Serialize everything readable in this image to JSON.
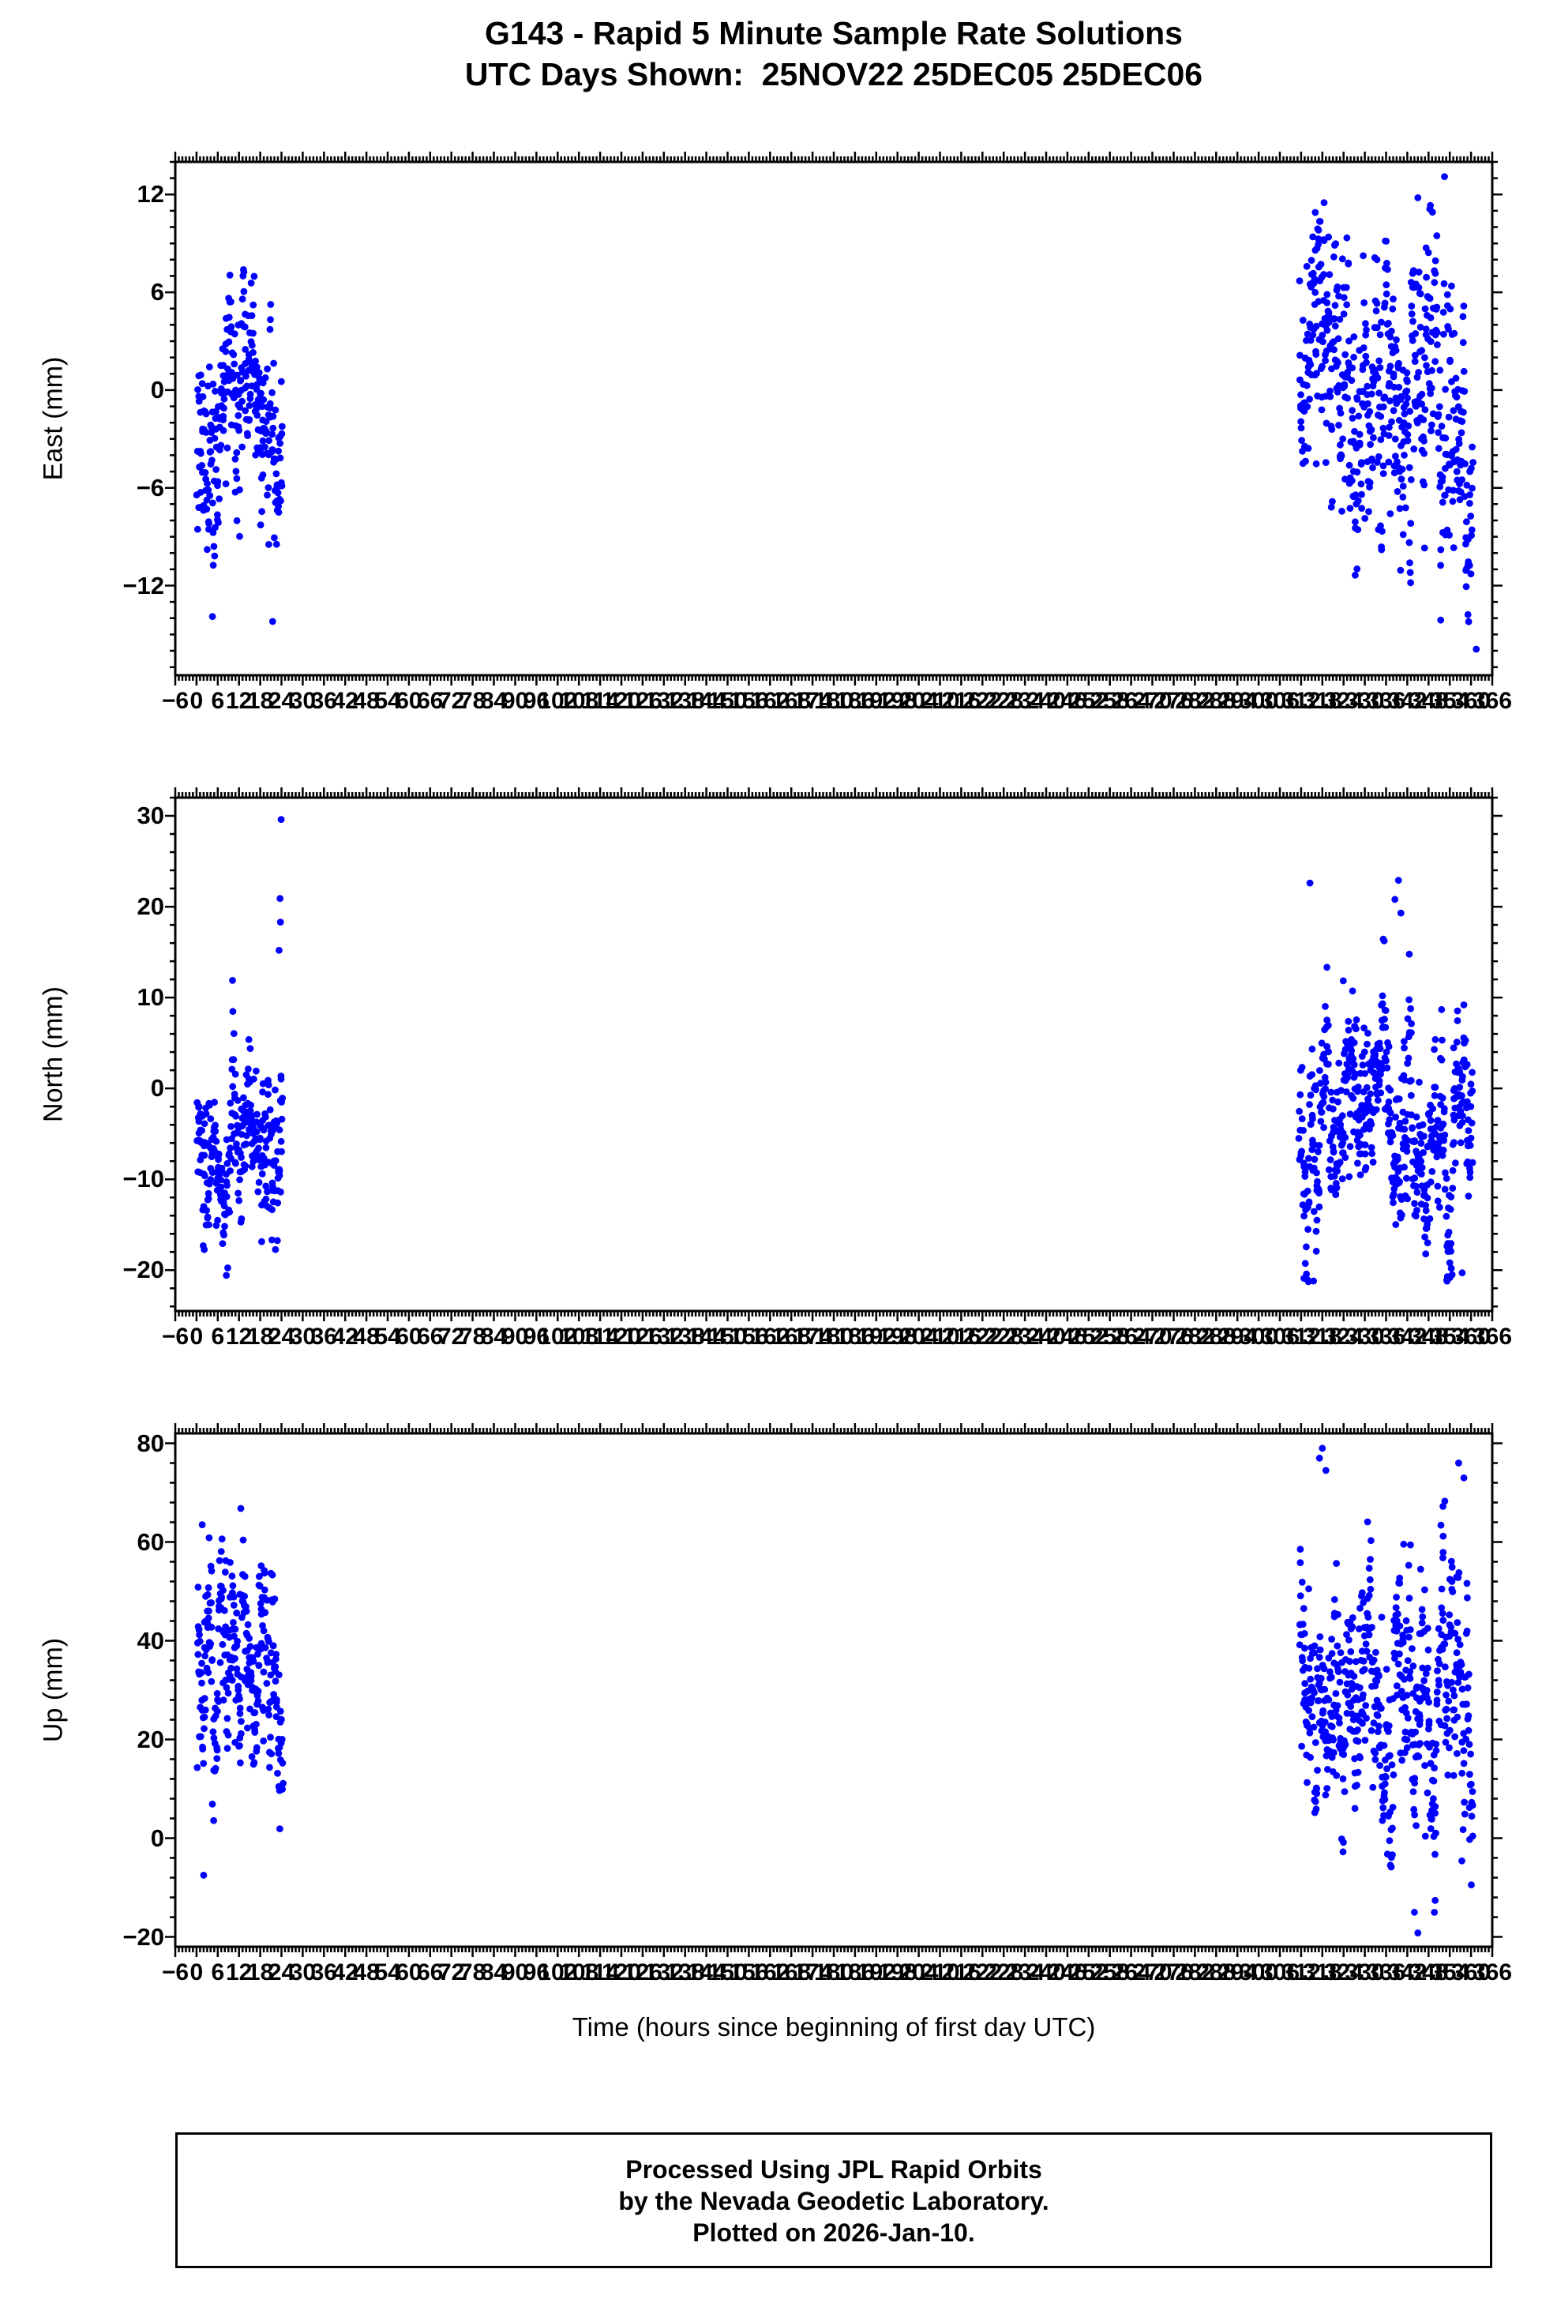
{
  "title": {
    "line1": "G143 - Rapid 5 Minute Sample Rate Solutions",
    "line2": "UTC Days Shown:  25NOV22 25DEC05 25DEC06"
  },
  "axis": {
    "xlabel": "Time (hours since beginning of first day UTC)"
  },
  "footer": {
    "line1": "Processed Using JPL Rapid Orbits",
    "line2": "by the Nevada Geodetic Laboratory.",
    "line3": "Plotted on 2026-Jan-10."
  },
  "style": {
    "point_color": "#0000ff",
    "axis_color": "#000000"
  },
  "chart_data": [
    {
      "type": "scatter",
      "name": "east",
      "ylabel": "East (mm)",
      "xlim": [
        -6,
        366
      ],
      "xtick_major": 6,
      "xtick_minor": 1,
      "ylim": [
        -17.5,
        14
      ],
      "yticks": [
        -12,
        -6,
        0,
        6,
        12
      ],
      "ytick_minor": 1,
      "grid": false,
      "legend": false,
      "series": [
        {
          "name": "day-25NOV22",
          "seed": 101,
          "x_range": [
            0.2,
            24.3
          ],
          "count": 288,
          "mean": -1.2,
          "std": 4.0,
          "ymin": -14.6,
          "ymax": 7.4
        },
        {
          "name": "days-25DEC05-25DEC06",
          "seed": 102,
          "x_range": [
            311.5,
            360.5
          ],
          "count": 576,
          "mean": -0.6,
          "std": 4.6,
          "ymin": -14.8,
          "ymax": 12.6
        }
      ],
      "extra_points": [
        [
          352.5,
          13.1
        ],
        [
          361.5,
          -15.9
        ],
        [
          345.0,
          11.8
        ],
        [
          316.0,
          10.9
        ],
        [
          318.5,
          11.5
        ],
        [
          4.5,
          -13.9
        ],
        [
          21.5,
          -14.2
        ]
      ]
    },
    {
      "type": "scatter",
      "name": "north",
      "ylabel": "North (mm)",
      "xlim": [
        -6,
        366
      ],
      "xtick_major": 6,
      "xtick_minor": 1,
      "ylim": [
        -24.5,
        32
      ],
      "yticks": [
        -20,
        -10,
        0,
        10,
        20,
        30
      ],
      "ytick_minor": 2,
      "grid": false,
      "legend": false,
      "series": [
        {
          "name": "day-25NOV22",
          "seed": 201,
          "x_range": [
            0.2,
            24.3
          ],
          "count": 288,
          "mean": -5.5,
          "std": 5.0,
          "ymin": -21.6,
          "ymax": 12.8
        },
        {
          "name": "days-25DEC05-25DEC06",
          "seed": 202,
          "x_range": [
            311.5,
            360.5
          ],
          "count": 576,
          "mean": -4.0,
          "std": 5.8,
          "ymin": -21.5,
          "ymax": 18.5
        }
      ],
      "extra_points": [
        [
          23.9,
          29.6
        ],
        [
          23.6,
          20.9
        ],
        [
          23.7,
          18.3
        ],
        [
          23.3,
          15.2
        ],
        [
          314.5,
          22.6
        ],
        [
          339.5,
          22.9
        ],
        [
          338.5,
          20.8
        ],
        [
          340.2,
          19.3
        ],
        [
          312.8,
          -20.9
        ],
        [
          315.5,
          -21.2
        ],
        [
          357.5,
          -20.3
        ]
      ]
    },
    {
      "type": "scatter",
      "name": "up",
      "ylabel": "Up (mm)",
      "xlim": [
        -6,
        366
      ],
      "xtick_major": 6,
      "xtick_minor": 1,
      "ylim": [
        -22,
        82
      ],
      "yticks": [
        -20,
        0,
        20,
        40,
        60,
        80
      ],
      "ytick_minor": 4,
      "grid": false,
      "legend": false,
      "series": [
        {
          "name": "day-25NOV22",
          "seed": 301,
          "x_range": [
            0.2,
            24.3
          ],
          "count": 288,
          "mean": 32,
          "std": 12,
          "ymin": -8.5,
          "ymax": 62
        },
        {
          "name": "days-25DEC05-25DEC06",
          "seed": 302,
          "x_range": [
            311.5,
            360.5
          ],
          "count": 576,
          "mean": 30,
          "std": 13,
          "ymin": -18.5,
          "ymax": 74
        }
      ],
      "extra_points": [
        [
          1.6,
          63.5
        ],
        [
          12.5,
          66.8
        ],
        [
          318.0,
          79.0
        ],
        [
          317.2,
          77.0
        ],
        [
          319.0,
          74.5
        ],
        [
          356.5,
          76.0
        ],
        [
          358.0,
          73.0
        ],
        [
          345.0,
          -19.2
        ],
        [
          344.0,
          -15.0
        ],
        [
          2.0,
          -7.5
        ]
      ]
    }
  ]
}
